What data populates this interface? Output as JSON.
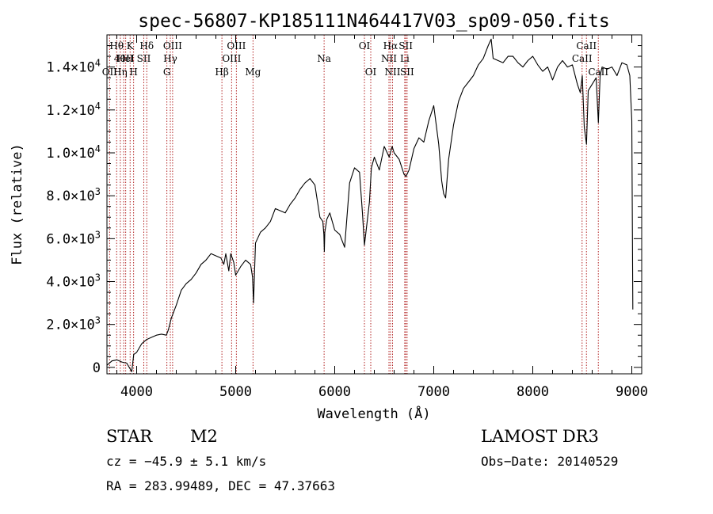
{
  "chart_data": {
    "type": "line",
    "title": "spec-56807-KP185111N464417V03_sp09-050.fits",
    "xlabel": "Wavelength (Å)",
    "ylabel": "Flux (relative)",
    "xlim": [
      3700,
      9100
    ],
    "ylim": [
      -300,
      15500
    ],
    "xticks": [
      4000,
      5000,
      6000,
      7000,
      8000,
      9000
    ],
    "xtick_labels": [
      "4000",
      "5000",
      "6000",
      "7000",
      "8000",
      "9000"
    ],
    "yticks": [
      0,
      2000,
      4000,
      6000,
      8000,
      10000,
      12000,
      14000
    ],
    "ytick_labels": [
      {
        "mant": "0",
        "exp": ""
      },
      {
        "mant": "2.0×10",
        "exp": "3"
      },
      {
        "mant": "4.0×10",
        "exp": "3"
      },
      {
        "mant": "6.0×10",
        "exp": "3"
      },
      {
        "mant": "8.0×10",
        "exp": "3"
      },
      {
        "mant": "1.0×10",
        "exp": "4"
      },
      {
        "mant": "1.2×10",
        "exp": "4"
      },
      {
        "mant": "1.4×10",
        "exp": "4"
      }
    ],
    "series": [
      {
        "name": "flux",
        "x": [
          3700,
          3750,
          3800,
          3850,
          3900,
          3950,
          3970,
          4000,
          4050,
          4100,
          4150,
          4200,
          4250,
          4300,
          4320,
          4350,
          4400,
          4450,
          4500,
          4550,
          4600,
          4650,
          4700,
          4750,
          4800,
          4850,
          4880,
          4900,
          4930,
          4950,
          4980,
          5000,
          5050,
          5100,
          5150,
          5170,
          5180,
          5200,
          5250,
          5300,
          5350,
          5400,
          5450,
          5500,
          5550,
          5600,
          5650,
          5700,
          5750,
          5800,
          5850,
          5880,
          5890,
          5895,
          5900,
          5920,
          5950,
          6000,
          6050,
          6100,
          6150,
          6200,
          6250,
          6280,
          6300,
          6330,
          6350,
          6370,
          6400,
          6450,
          6500,
          6550,
          6580,
          6600,
          6650,
          6700,
          6720,
          6750,
          6800,
          6850,
          6900,
          6950,
          7000,
          7050,
          7080,
          7100,
          7120,
          7150,
          7200,
          7250,
          7300,
          7350,
          7400,
          7450,
          7500,
          7550,
          7580,
          7600,
          7650,
          7700,
          7750,
          7800,
          7850,
          7900,
          7950,
          8000,
          8050,
          8100,
          8150,
          8200,
          8250,
          8300,
          8350,
          8400,
          8450,
          8480,
          8500,
          8520,
          8542,
          8560,
          8600,
          8640,
          8662,
          8680,
          8700,
          8750,
          8800,
          8850,
          8900,
          8950,
          8980,
          9000,
          9010
        ],
        "y": [
          100,
          300,
          350,
          250,
          200,
          -200,
          600,
          700,
          1100,
          1300,
          1400,
          1500,
          1550,
          1500,
          1750,
          2300,
          2900,
          3600,
          3900,
          4100,
          4400,
          4800,
          5000,
          5300,
          5200,
          5100,
          4800,
          5300,
          4500,
          5300,
          4900,
          4300,
          4700,
          5000,
          4800,
          4200,
          3000,
          5800,
          6300,
          6500,
          6800,
          7400,
          7300,
          7200,
          7600,
          7900,
          8300,
          8600,
          8800,
          8500,
          7000,
          6800,
          6200,
          5400,
          6300,
          6900,
          7200,
          6400,
          6200,
          5600,
          8600,
          9300,
          9100,
          7200,
          5700,
          6900,
          7700,
          9300,
          9800,
          9200,
          10300,
          9800,
          10300,
          10000,
          9700,
          9000,
          8900,
          9200,
          10200,
          10700,
          10500,
          11500,
          12200,
          10400,
          8700,
          8100,
          7900,
          9700,
          11300,
          12400,
          13000,
          13300,
          13600,
          14100,
          14400,
          15000,
          15300,
          14400,
          14300,
          14200,
          14500,
          14500,
          14200,
          14000,
          14300,
          14500,
          14100,
          13800,
          14000,
          13400,
          14000,
          14300,
          14000,
          14100,
          13200,
          12800,
          13600,
          11200,
          10400,
          12900,
          13200,
          13500,
          11400,
          13600,
          14000,
          13900,
          14000,
          13600,
          14200,
          14100,
          13600,
          11500,
          2700
        ]
      }
    ],
    "emission_lines": [
      {
        "wavelength": 3798,
        "label": "Hθ",
        "row": 1
      },
      {
        "wavelength": 3727,
        "label": "OII",
        "row": 3
      },
      {
        "wavelength": 3835,
        "label": "Hη",
        "row": 3
      },
      {
        "wavelength": 3869,
        "label": "40II",
        "row": 2
      },
      {
        "wavelength": 3889,
        "label": "HeI",
        "row": 2
      },
      {
        "wavelength": 3934,
        "label": "K",
        "row": 1
      },
      {
        "wavelength": 3969,
        "label": "H",
        "row": 3
      },
      {
        "wavelength": 4072,
        "label": "SII",
        "row": 2
      },
      {
        "wavelength": 4102,
        "label": "Hδ",
        "row": 1
      },
      {
        "wavelength": 4305,
        "label": "G",
        "row": 3
      },
      {
        "wavelength": 4340,
        "label": "Hγ",
        "row": 2
      },
      {
        "wavelength": 4363,
        "label": "OIII",
        "row": 1
      },
      {
        "wavelength": 4861,
        "label": "Hβ",
        "row": 3
      },
      {
        "wavelength": 4959,
        "label": "OIII",
        "row": 2
      },
      {
        "wavelength": 5007,
        "label": "OIII",
        "row": 1
      },
      {
        "wavelength": 5175,
        "label": "Mg",
        "row": 3
      },
      {
        "wavelength": 5893,
        "label": "Na",
        "row": 2
      },
      {
        "wavelength": 6300,
        "label": "OI",
        "row": 1
      },
      {
        "wavelength": 6364,
        "label": "OI",
        "row": 3
      },
      {
        "wavelength": 6548,
        "label": "NII",
        "row": 2
      },
      {
        "wavelength": 6563,
        "label": "Hα",
        "row": 1
      },
      {
        "wavelength": 6584,
        "label": "NII",
        "row": 3
      },
      {
        "wavelength": 6707,
        "label": "Li",
        "row": 2
      },
      {
        "wavelength": 6717,
        "label": "SII",
        "row": 1
      },
      {
        "wavelength": 6731,
        "label": "SII",
        "row": 3
      },
      {
        "wavelength": 8498,
        "label": "CaII",
        "row": 2
      },
      {
        "wavelength": 8542,
        "label": "CaII",
        "row": 1
      },
      {
        "wavelength": 8662,
        "label": "CaII",
        "row": 3
      }
    ],
    "grid": false,
    "colors": {
      "line": "#000000",
      "marker": "#b22222",
      "background": "#ffffff"
    }
  },
  "info": {
    "object_class": "STAR",
    "subclass": "M2",
    "survey": "LAMOST DR3",
    "cz": "cz = −45.9 ± 5.1 km/s",
    "obs_date": "Obs−Date: 20140529",
    "coords": "RA = 283.99489, DEC =  47.37663"
  }
}
